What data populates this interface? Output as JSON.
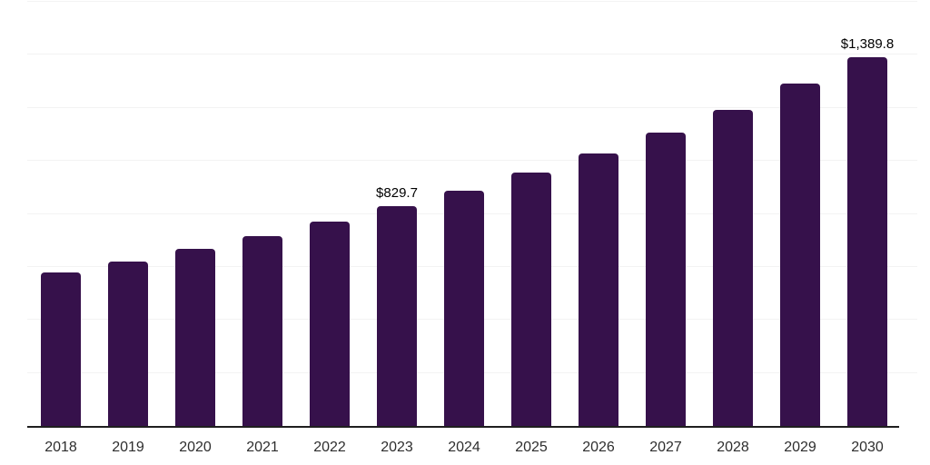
{
  "chart_data": {
    "type": "bar",
    "title": "",
    "xlabel": "",
    "ylabel": "",
    "categories": [
      "2018",
      "2019",
      "2020",
      "2021",
      "2022",
      "2023",
      "2024",
      "2025",
      "2026",
      "2027",
      "2028",
      "2029",
      "2030"
    ],
    "values": [
      578,
      620,
      668,
      716,
      772,
      829.7,
      888,
      956,
      1028,
      1107,
      1194,
      1291,
      1389.8
    ],
    "data_labels": [
      null,
      null,
      null,
      null,
      null,
      "$829.7",
      null,
      null,
      null,
      null,
      null,
      null,
      "$1,389.8"
    ],
    "ylim": [
      0,
      1600
    ],
    "gridline_step": 200,
    "grid": true,
    "legend": false,
    "y_tick_labels_visible": false,
    "colors": {
      "bar": "#36114B",
      "axis": "#1F1F1F",
      "gridline": "#F3F3F3",
      "value_label": "#000000",
      "tick_label": "#2E2E2E"
    }
  }
}
